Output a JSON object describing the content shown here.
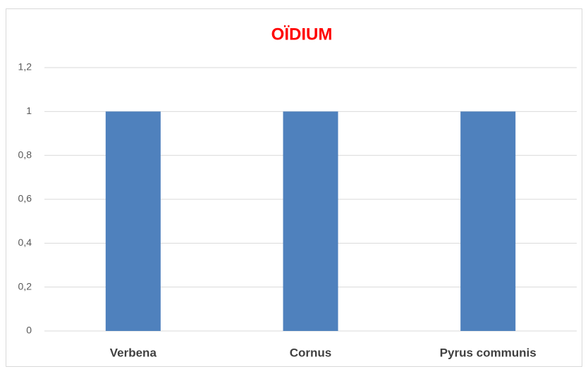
{
  "chart_data": {
    "type": "bar",
    "title": "OÏDIUM",
    "categories": [
      "Verbena",
      "Cornus",
      "Pyrus communis"
    ],
    "values": [
      1,
      1,
      1
    ],
    "color": "#4f81bd",
    "ylim": [
      0,
      1.2
    ],
    "yticks": [
      0,
      {
        "value": 0.2,
        "label": "0,2"
      },
      {
        "value": 0.4,
        "label": "0,4"
      },
      {
        "value": 0.6,
        "label": "0,6"
      },
      {
        "value": 0.8,
        "label": "0,8"
      },
      1,
      {
        "value": 1.2,
        "label": "1,2"
      }
    ],
    "grid": true
  }
}
